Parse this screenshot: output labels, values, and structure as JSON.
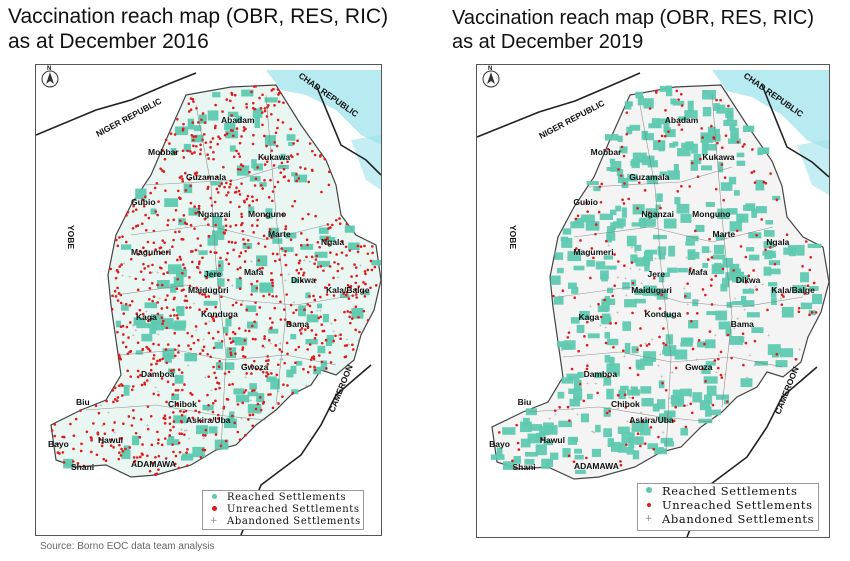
{
  "maps": [
    {
      "title_line1": "Vaccination reach map (OBR, RES, RIC)",
      "title_line2": "as at December 2016",
      "year": 2016,
      "density": {
        "reached": 0.35,
        "unreached": 0.65
      }
    },
    {
      "title_line1": "Vaccination reach map (OBR, RES, RIC)",
      "title_line2": "as at December 2019",
      "year": 2019,
      "density": {
        "reached": 0.85,
        "unreached": 0.15
      }
    }
  ],
  "countries": {
    "niger": "NIGER REPUBLIC",
    "chad": "CHAD REPUBLIC",
    "cameroon": "CAMEROON",
    "yobe": "YOBE",
    "adamawa": "ADAMAWA"
  },
  "lgas": [
    "Abadam",
    "Mobbar",
    "Kukawa",
    "Guzamala",
    "Gubio",
    "Nganzai",
    "Monguno",
    "Marte",
    "Ngala",
    "Magumeri",
    "Jere",
    "Mafa",
    "Dikwa",
    "Kala/Balge",
    "Maiduguri",
    "Kaga",
    "Konduga",
    "Bama",
    "Damboa",
    "Gwoza",
    "Biu",
    "Chibok",
    "Askira/Uba",
    "Hawul",
    "Bayo",
    "Shani"
  ],
  "legend": {
    "reached": "Reached Settlements",
    "unreached": "Unreached Settlements",
    "abandoned": "Abandoned Settlements"
  },
  "colors": {
    "reached": "#5ec9b0",
    "unreached": "#e01b1b",
    "abandoned": "#a8a8a8",
    "lake": "#9fe3ec",
    "border": "#222222"
  },
  "compass_label": "N",
  "source": "Source: Borno EOC data team analysis"
}
